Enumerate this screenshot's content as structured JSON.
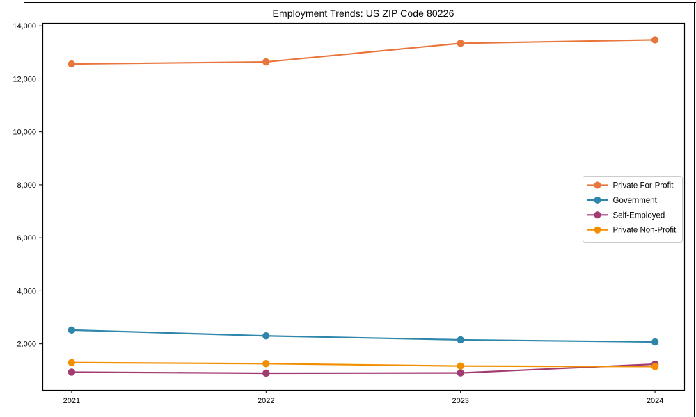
{
  "figure": {
    "border_color": "#000000",
    "background": "#ffffff"
  },
  "chart_data": {
    "type": "line",
    "title": "Employment Trends: US ZIP Code 80226",
    "xlabel": "",
    "ylabel": "",
    "x": [
      2021,
      2022,
      2023,
      2024
    ],
    "x_tick_labels": [
      "2021",
      "2022",
      "2023",
      "2024"
    ],
    "series": [
      {
        "name": "Private For-Profit",
        "color": "#E8763C",
        "values": [
          12560,
          12640,
          13340,
          13470
        ]
      },
      {
        "name": "Government",
        "color": "#2E86AB",
        "values": [
          2520,
          2300,
          2150,
          2070
        ]
      },
      {
        "name": "Self-Employed",
        "color": "#A23B72",
        "values": [
          930,
          890,
          900,
          1230
        ]
      },
      {
        "name": "Private Non-Profit",
        "color": "#F18F01",
        "values": [
          1290,
          1250,
          1160,
          1140
        ]
      }
    ],
    "yticks": [
      2000,
      4000,
      6000,
      8000,
      10000,
      12000,
      14000
    ],
    "ytick_labels": [
      "2,000",
      "4,000",
      "6,000",
      "8,000",
      "10,000",
      "12,000",
      "14,000"
    ],
    "ylim": [
      260,
      14110
    ],
    "xlim": [
      2020.85,
      2024.15
    ],
    "grid": false,
    "marker": "circle",
    "legend": {
      "position": "middle-right",
      "border_color": "#cccccc",
      "entries": [
        "Private For-Profit",
        "Government",
        "Self-Employed",
        "Private Non-Profit"
      ]
    }
  }
}
